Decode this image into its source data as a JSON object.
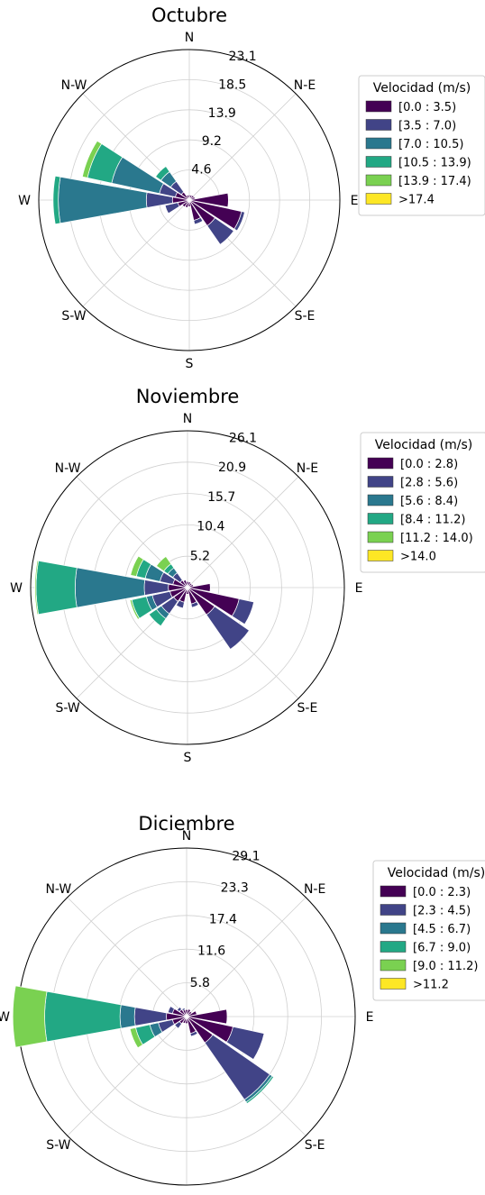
{
  "direction_labels": [
    "N",
    "N-E",
    "E",
    "S-E",
    "S",
    "S-W",
    "W",
    "N-W"
  ],
  "legend_title": "Velocidad (m/s)",
  "colors": [
    "#440154",
    "#414487",
    "#2a788e",
    "#22a884",
    "#7ad151",
    "#fde725"
  ],
  "chart_data": [
    {
      "type": "windrose",
      "title": "Octubre",
      "rlabels": [
        "4.6",
        "9.2",
        "13.9",
        "18.5",
        "23.1"
      ],
      "rmax": 23.1,
      "bins": [
        "[0.0 : 3.5)",
        "[3.5 : 7.0)",
        "[7.0 : 10.5)",
        "[10.5 : 13.9)",
        "[13.9 : 17.4)",
        ">17.4"
      ],
      "sectors": [
        {
          "dir": 0,
          "values": [
            0.8
          ]
        },
        {
          "dir": 22.5,
          "values": [
            0.8
          ]
        },
        {
          "dir": 45,
          "values": [
            0.9
          ]
        },
        {
          "dir": 67.5,
          "values": [
            0.9
          ]
        },
        {
          "dir": 90,
          "values": [
            6.0
          ]
        },
        {
          "dir": 112.5,
          "values": [
            8.2,
            0.5
          ]
        },
        {
          "dir": 135,
          "values": [
            4.8,
            3.5
          ]
        },
        {
          "dir": 157.5,
          "values": [
            3.2,
            0.6
          ]
        },
        {
          "dir": 180,
          "values": [
            1.0
          ]
        },
        {
          "dir": 202.5,
          "values": [
            1.2
          ]
        },
        {
          "dir": 225,
          "values": [
            1.3
          ]
        },
        {
          "dir": 247.5,
          "values": [
            1.8,
            2.0
          ]
        },
        {
          "dir": 270,
          "values": [
            2.6,
            4.0,
            13.5,
            0.8
          ]
        },
        {
          "dir": 292.5,
          "values": [
            2.2,
            2.5,
            7.5,
            3.8,
            0.8
          ]
        },
        {
          "dir": 315,
          "values": [
            1.5,
            2.0,
            1.8,
            1.0
          ]
        },
        {
          "dir": 337.5,
          "values": [
            0.8
          ]
        }
      ]
    },
    {
      "type": "windrose",
      "title": "Noviembre",
      "rlabels": [
        "5.2",
        "10.4",
        "15.7",
        "20.9",
        "26.1"
      ],
      "rmax": 26.1,
      "bins": [
        "[0.0 : 2.8)",
        "[2.8 : 5.6)",
        "[5.6 : 8.4)",
        "[8.4 : 11.2)",
        "[11.2 : 14.0)",
        ">14.0"
      ],
      "sectors": [
        {
          "dir": 0,
          "values": [
            1.0
          ]
        },
        {
          "dir": 22.5,
          "values": [
            1.0
          ]
        },
        {
          "dir": 45,
          "values": [
            0.9
          ]
        },
        {
          "dir": 67.5,
          "values": [
            1.0
          ]
        },
        {
          "dir": 90,
          "values": [
            3.8
          ]
        },
        {
          "dir": 112.5,
          "values": [
            8.8,
            2.5
          ]
        },
        {
          "dir": 135,
          "values": [
            5.5,
            7.0
          ]
        },
        {
          "dir": 157.5,
          "values": [
            2.8,
            0.6
          ]
        },
        {
          "dir": 180,
          "values": [
            1.1
          ]
        },
        {
          "dir": 202.5,
          "values": [
            2.5,
            1.0
          ]
        },
        {
          "dir": 225,
          "values": [
            2.8,
            2.5,
            1.0,
            1.5
          ]
        },
        {
          "dir": 247.5,
          "values": [
            3.0,
            3.0,
            1.0,
            2.5,
            0.3
          ]
        },
        {
          "dir": 270,
          "values": [
            3.2,
            4.0,
            11.5,
            6.5,
            0.2
          ]
        },
        {
          "dir": 292.5,
          "values": [
            2.5,
            2.2,
            2.5,
            1.5,
            1.0
          ]
        },
        {
          "dir": 315,
          "values": [
            1.5,
            1.5,
            1.0,
            0.8,
            1.5
          ]
        },
        {
          "dir": 337.5,
          "values": [
            1.3
          ]
        }
      ]
    },
    {
      "type": "windrose",
      "title": "Diciembre",
      "rlabels": [
        "5.8",
        "11.6",
        "17.4",
        "23.3",
        "29.1"
      ],
      "rmax": 29.1,
      "bins": [
        "[0.0 : 2.3)",
        "[2.3 : 4.5)",
        "[4.5 : 6.7)",
        "[6.7 : 9.0)",
        "[9.0 : 11.2)",
        ">11.2"
      ],
      "sectors": [
        {
          "dir": 0,
          "values": [
            1.2
          ]
        },
        {
          "dir": 22.5,
          "values": [
            1.3
          ]
        },
        {
          "dir": 45,
          "values": [
            1.1
          ]
        },
        {
          "dir": 67.5,
          "values": [
            1.8
          ]
        },
        {
          "dir": 90,
          "values": [
            7.0
          ]
        },
        {
          "dir": 112.5,
          "values": [
            8.2,
            5.5
          ]
        },
        {
          "dir": 135,
          "values": [
            5.5,
            12.0,
            0.5,
            0.3
          ]
        },
        {
          "dir": 157.5,
          "values": [
            3.0,
            0.5
          ]
        },
        {
          "dir": 180,
          "values": [
            1.2
          ]
        },
        {
          "dir": 202.5,
          "values": [
            1.2
          ]
        },
        {
          "dir": 225,
          "values": [
            1.5,
            1.0
          ]
        },
        {
          "dir": 247.5,
          "values": [
            2.5,
            2.5,
            1.5,
            2.5,
            1.0
          ]
        },
        {
          "dir": 270,
          "values": [
            3.5,
            5.5,
            2.5,
            13.0,
            5.5
          ]
        },
        {
          "dir": 292.5,
          "values": [
            2.5,
            0.8
          ]
        },
        {
          "dir": 315,
          "values": [
            1.5,
            0.5
          ]
        },
        {
          "dir": 337.5,
          "values": [
            1.2,
            0.3
          ]
        }
      ]
    }
  ]
}
